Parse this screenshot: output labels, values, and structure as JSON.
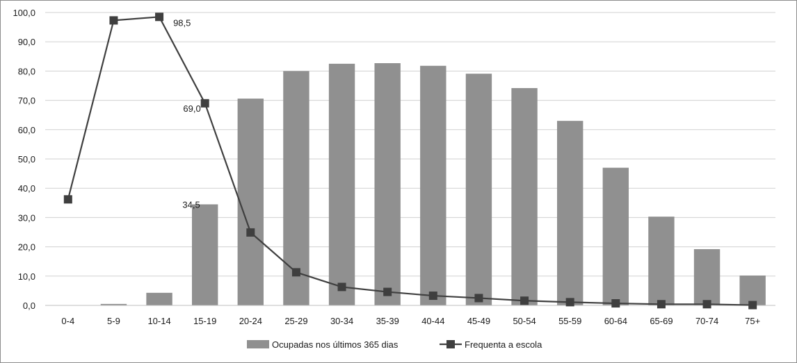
{
  "chart_data": {
    "type": "bar",
    "categories": [
      "0-4",
      "5-9",
      "10-14",
      "15-19",
      "20-24",
      "25-29",
      "30-34",
      "35-39",
      "40-44",
      "45-49",
      "50-54",
      "55-59",
      "60-64",
      "65-69",
      "70-74",
      "75+"
    ],
    "series": [
      {
        "name": "Ocupadas nos últimos 365 dias",
        "type": "bar",
        "color": "#909090",
        "values": [
          0.0,
          0.5,
          4.3,
          34.5,
          70.6,
          80.0,
          82.5,
          82.7,
          81.8,
          79.1,
          74.2,
          63.0,
          47.0,
          30.3,
          19.2,
          10.2
        ]
      },
      {
        "name": "Frequenta a escola",
        "type": "line",
        "color": "#3f3f3f",
        "marker": "square",
        "values": [
          36.2,
          97.3,
          98.5,
          69.0,
          24.9,
          11.3,
          6.3,
          4.6,
          3.3,
          2.5,
          1.6,
          1.1,
          0.7,
          0.4,
          0.4,
          0.1
        ]
      }
    ],
    "y_ticks": [
      "0,0",
      "10,0",
      "20,0",
      "30,0",
      "40,0",
      "50,0",
      "60,0",
      "70,0",
      "80,0",
      "90,0",
      "100,0"
    ],
    "ylim": [
      0,
      100
    ],
    "grid": true,
    "legend_position": "bottom-center",
    "annotations": [
      {
        "text": "98,5",
        "series": 1,
        "index": 2
      },
      {
        "text": "69,0",
        "series": 1,
        "index": 3
      },
      {
        "text": "34,5",
        "series": 0,
        "index": 3
      }
    ],
    "title": "",
    "xlabel": "",
    "ylabel": ""
  }
}
